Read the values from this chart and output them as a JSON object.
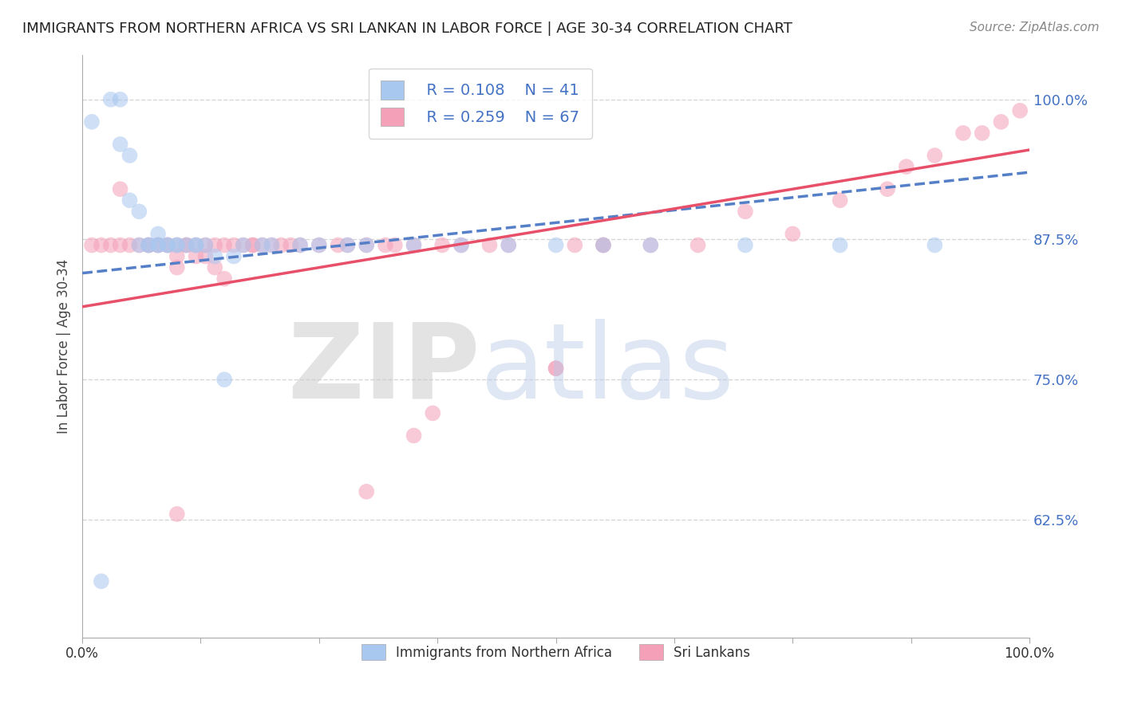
{
  "title": "IMMIGRANTS FROM NORTHERN AFRICA VS SRI LANKAN IN LABOR FORCE | AGE 30-34 CORRELATION CHART",
  "source": "Source: ZipAtlas.com",
  "ylabel": "In Labor Force | Age 30-34",
  "xlim": [
    0.0,
    1.0
  ],
  "ylim": [
    0.52,
    1.04
  ],
  "yticks": [
    0.625,
    0.75,
    0.875,
    1.0
  ],
  "yticklabels": [
    "62.5%",
    "75.0%",
    "87.5%",
    "100.0%"
  ],
  "xticks": [
    0.0,
    0.125,
    0.25,
    0.375,
    0.5,
    0.625,
    0.75,
    0.875,
    1.0
  ],
  "xticklabels": [
    "0.0%",
    "",
    "",
    "",
    "",
    "",
    "",
    "",
    "100.0%"
  ],
  "legend_r1": "R = 0.108",
  "legend_n1": "N = 41",
  "legend_r2": "R = 0.259",
  "legend_n2": "N = 67",
  "blue_color": "#A8C8F0",
  "pink_color": "#F4A0B8",
  "blue_line_color": "#5580C8",
  "pink_line_color": "#E8506A",
  "blue_scatter_x": [
    0.01,
    0.03,
    0.04,
    0.04,
    0.05,
    0.05,
    0.06,
    0.06,
    0.07,
    0.07,
    0.08,
    0.08,
    0.08,
    0.09,
    0.09,
    0.1,
    0.1,
    0.11,
    0.12,
    0.12,
    0.13,
    0.14,
    0.15,
    0.16,
    0.17,
    0.19,
    0.2,
    0.23,
    0.25,
    0.28,
    0.3,
    0.35,
    0.4,
    0.45,
    0.5,
    0.55,
    0.6,
    0.7,
    0.8,
    0.9,
    0.02
  ],
  "blue_scatter_y": [
    0.98,
    1.0,
    1.0,
    0.96,
    0.95,
    0.91,
    0.9,
    0.87,
    0.87,
    0.87,
    0.87,
    0.87,
    0.88,
    0.87,
    0.87,
    0.87,
    0.87,
    0.87,
    0.87,
    0.87,
    0.87,
    0.86,
    0.75,
    0.86,
    0.87,
    0.87,
    0.87,
    0.87,
    0.87,
    0.87,
    0.87,
    0.87,
    0.87,
    0.87,
    0.87,
    0.87,
    0.87,
    0.87,
    0.87,
    0.87,
    0.57
  ],
  "pink_scatter_x": [
    0.01,
    0.02,
    0.03,
    0.04,
    0.05,
    0.06,
    0.07,
    0.07,
    0.08,
    0.08,
    0.09,
    0.09,
    0.1,
    0.1,
    0.1,
    0.11,
    0.11,
    0.12,
    0.12,
    0.13,
    0.13,
    0.14,
    0.14,
    0.15,
    0.15,
    0.16,
    0.17,
    0.18,
    0.18,
    0.19,
    0.2,
    0.21,
    0.22,
    0.23,
    0.25,
    0.27,
    0.28,
    0.3,
    0.32,
    0.33,
    0.35,
    0.38,
    0.4,
    0.43,
    0.45,
    0.5,
    0.55,
    0.6,
    0.65,
    0.7,
    0.75,
    0.8,
    0.85,
    0.87,
    0.9,
    0.93,
    0.95,
    0.97,
    0.99,
    0.04,
    0.1,
    0.3,
    0.35,
    0.37,
    0.5,
    0.52,
    0.55
  ],
  "pink_scatter_y": [
    0.87,
    0.87,
    0.87,
    0.87,
    0.87,
    0.87,
    0.87,
    0.87,
    0.87,
    0.87,
    0.87,
    0.87,
    0.85,
    0.86,
    0.87,
    0.87,
    0.87,
    0.86,
    0.87,
    0.86,
    0.87,
    0.85,
    0.87,
    0.84,
    0.87,
    0.87,
    0.87,
    0.87,
    0.87,
    0.87,
    0.87,
    0.87,
    0.87,
    0.87,
    0.87,
    0.87,
    0.87,
    0.87,
    0.87,
    0.87,
    0.87,
    0.87,
    0.87,
    0.87,
    0.87,
    0.76,
    0.87,
    0.87,
    0.87,
    0.9,
    0.88,
    0.91,
    0.92,
    0.94,
    0.95,
    0.97,
    0.97,
    0.98,
    0.99,
    0.92,
    0.63,
    0.65,
    0.7,
    0.72,
    0.76,
    0.87,
    0.87
  ],
  "blue_trendline_x": [
    0.0,
    1.0
  ],
  "blue_trendline_y": [
    0.845,
    0.935
  ],
  "pink_trendline_x": [
    0.0,
    1.0
  ],
  "pink_trendline_y": [
    0.815,
    0.955
  ]
}
